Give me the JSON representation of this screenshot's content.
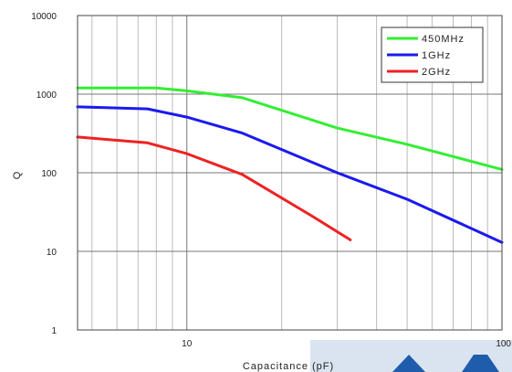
{
  "chart_data": {
    "type": "line",
    "title": "",
    "xlabel": "Capacitance (pF)",
    "ylabel": "Q",
    "x_scale": "log",
    "y_scale": "log",
    "xlim": [
      4.5,
      100
    ],
    "ylim": [
      1,
      10000
    ],
    "x_ticks": [
      {
        "value": 10,
        "label": "10"
      },
      {
        "value": 100,
        "label": "100"
      }
    ],
    "y_ticks": [
      {
        "value": 1,
        "label": "1"
      },
      {
        "value": 10,
        "label": "10"
      },
      {
        "value": 100,
        "label": "100"
      },
      {
        "value": 1000,
        "label": "1000"
      },
      {
        "value": 10000,
        "label": "10000"
      }
    ],
    "grid": true,
    "legend_position": "top-right",
    "series": [
      {
        "name": "450MHz",
        "color": "#33ee33",
        "points": [
          [
            4.5,
            1200
          ],
          [
            8.0,
            1200
          ],
          [
            10,
            1100
          ],
          [
            15,
            900
          ],
          [
            30,
            370
          ],
          [
            50,
            230
          ],
          [
            100,
            110
          ]
        ]
      },
      {
        "name": "1GHz",
        "color": "#1a1aee",
        "points": [
          [
            4.5,
            690
          ],
          [
            7.5,
            650
          ],
          [
            10,
            510
          ],
          [
            15,
            320
          ],
          [
            30,
            100
          ],
          [
            50,
            46
          ],
          [
            100,
            13
          ]
        ]
      },
      {
        "name": "2GHz",
        "color": "#ee2222",
        "points": [
          [
            4.5,
            285
          ],
          [
            7.5,
            240
          ],
          [
            10,
            175
          ],
          [
            15,
            95
          ],
          [
            25,
            28
          ],
          [
            33,
            14
          ]
        ]
      }
    ]
  }
}
